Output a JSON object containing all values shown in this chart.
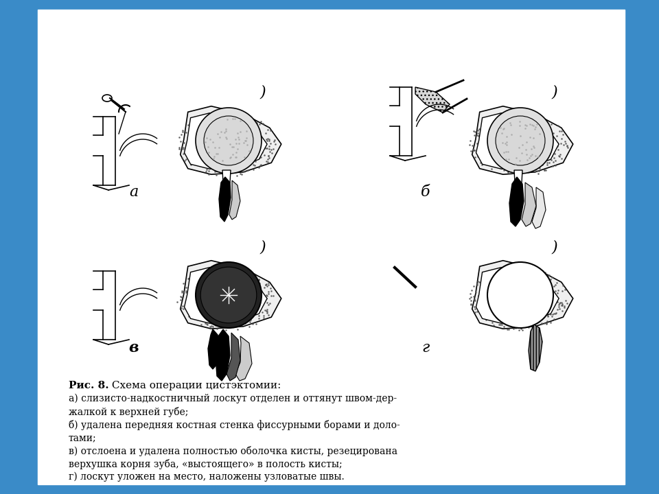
{
  "background_color": "#3a8bc8",
  "white_box_color": "#ffffff",
  "caption_title_bold": "Рис. 8.",
  "caption_title_rest": " Схема операции цистэктомии:",
  "caption_lines": [
    "а) слизисто-надкостничный лоскут отделен и оттянут швом-дер-",
    "жалкой к верхней губе;",
    "б) удалена передняя костная стенка фиссурными борами и доло-",
    "тами;",
    "в) отслоена и удалена полностью оболочка кисты, резецирована",
    "верхушка корня зуба, «выстоящего» в полость кисты;",
    "г) лоскут уложен на место, наложены узловатые швы."
  ],
  "labels": [
    "а",
    "б",
    "в",
    "г"
  ]
}
